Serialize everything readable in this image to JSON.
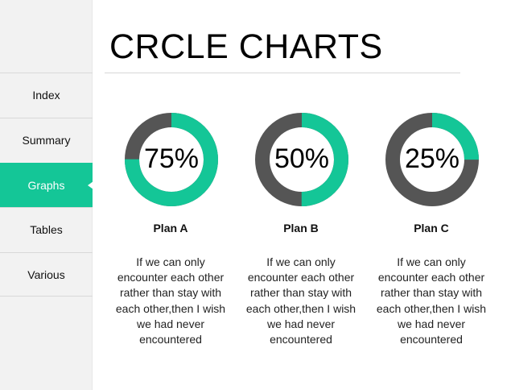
{
  "sidebar": {
    "items": [
      {
        "label": "Index"
      },
      {
        "label": "Summary"
      },
      {
        "label": "Graphs",
        "active": true
      },
      {
        "label": "Tables"
      },
      {
        "label": "Various"
      }
    ]
  },
  "header": {
    "title": "CRCLE CHARTS"
  },
  "plans": [
    {
      "name": "Plan A",
      "percent_label": "75%",
      "percent_value": 75,
      "description": "If we can only encounter each other rather than stay with each other,then I wish we had never encountered"
    },
    {
      "name": "Plan B",
      "percent_label": "50%",
      "percent_value": 50,
      "description": "If we can only encounter each other rather than stay with each other,then I wish we had never encountered"
    },
    {
      "name": "Plan C",
      "percent_label": "25%",
      "percent_value": 25,
      "description": "If we can only encounter each other rather than stay with each other,then I wish we had never encountered"
    }
  ],
  "colors": {
    "accent": "#14c697",
    "ring_dark": "#555555",
    "sidebar_bg": "#f2f2f2"
  },
  "icons": {
    "active_indicator": "chevron-left-icon"
  }
}
